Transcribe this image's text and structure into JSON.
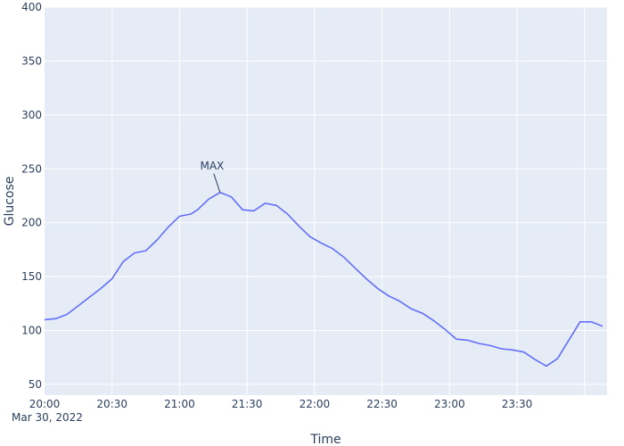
{
  "chart_data": {
    "type": "line",
    "xlabel": "Time",
    "ylabel": "Glucose",
    "x_date_label": "Mar 30, 2022",
    "xlim": [
      "2022-03-30 20:00",
      "2022-03-31 00:10"
    ],
    "ylim": [
      40,
      400
    ],
    "x_tick_labels": [
      "20:00",
      "20:30",
      "21:00",
      "21:30",
      "22:00",
      "22:30",
      "23:00",
      "23:30"
    ],
    "y_ticks": [
      50,
      100,
      150,
      200,
      250,
      300,
      350,
      400
    ],
    "grid": true,
    "legend": "none",
    "colors": {
      "line": "#636efa",
      "plot_bg": "#e5ecf6",
      "grid": "#ffffff",
      "text": "#2a3f5f"
    },
    "annotation": {
      "text": "MAX",
      "x": "2022-03-30 21:18",
      "y": 228
    },
    "series": [
      {
        "x": [
          "2022-03-30 20:00",
          "2022-03-30 20:05",
          "2022-03-30 20:10",
          "2022-03-30 20:15",
          "2022-03-30 20:20",
          "2022-03-30 20:25",
          "2022-03-30 20:30",
          "2022-03-30 20:35",
          "2022-03-30 20:40",
          "2022-03-30 20:45",
          "2022-03-30 20:50",
          "2022-03-30 20:55",
          "2022-03-30 21:00",
          "2022-03-30 21:05",
          "2022-03-30 21:08",
          "2022-03-30 21:13",
          "2022-03-30 21:18",
          "2022-03-30 21:23",
          "2022-03-30 21:28",
          "2022-03-30 21:33",
          "2022-03-30 21:38",
          "2022-03-30 21:43",
          "2022-03-30 21:48",
          "2022-03-30 21:53",
          "2022-03-30 21:58",
          "2022-03-30 22:03",
          "2022-03-30 22:08",
          "2022-03-30 22:13",
          "2022-03-30 22:18",
          "2022-03-30 22:23",
          "2022-03-30 22:28",
          "2022-03-30 22:33",
          "2022-03-30 22:38",
          "2022-03-30 22:43",
          "2022-03-30 22:48",
          "2022-03-30 22:53",
          "2022-03-30 22:58",
          "2022-03-30 23:03",
          "2022-03-30 23:08",
          "2022-03-30 23:13",
          "2022-03-30 23:18",
          "2022-03-30 23:23",
          "2022-03-30 23:28",
          "2022-03-30 23:33",
          "2022-03-30 23:38",
          "2022-03-30 23:43",
          "2022-03-30 23:48",
          "2022-03-30 23:53",
          "2022-03-30 23:58",
          "2022-03-31 00:03",
          "2022-03-31 00:08"
        ],
        "y": [
          110,
          111,
          115,
          123,
          131,
          139,
          148,
          164,
          172,
          174,
          184,
          196,
          206,
          208,
          212,
          222,
          228,
          224,
          212,
          211,
          218,
          216,
          208,
          197,
          187,
          181,
          176,
          168,
          158,
          148,
          139,
          132,
          127,
          120,
          116,
          109,
          101,
          92,
          91,
          88,
          86,
          83,
          82,
          80,
          73,
          67,
          74,
          91,
          108,
          108,
          104
        ]
      }
    ]
  }
}
